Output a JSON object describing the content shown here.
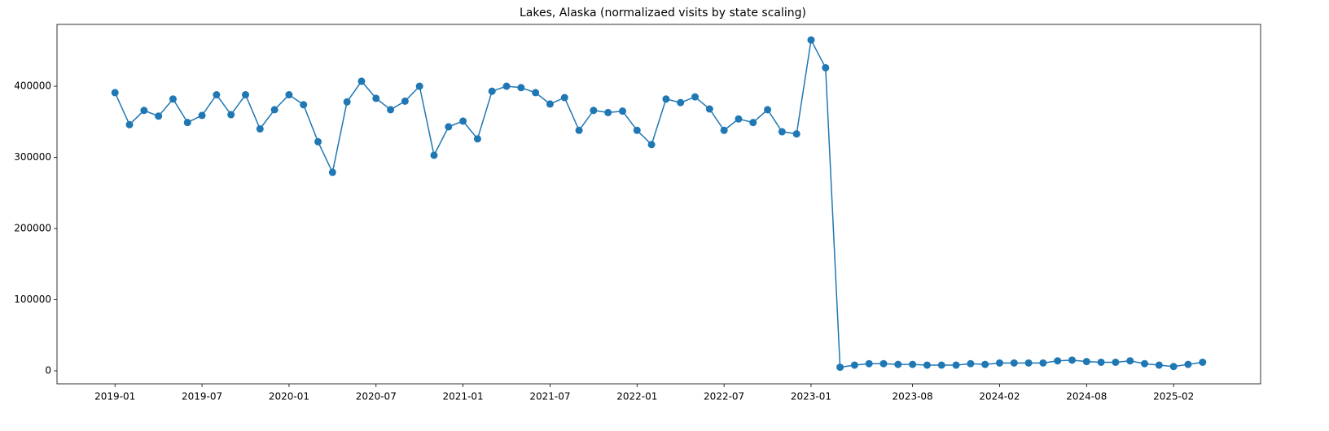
{
  "chart_data": {
    "type": "line",
    "title": "Lakes, Alaska (normalizaed visits by state scaling)",
    "x": [
      "2019-01",
      "2019-02",
      "2019-03",
      "2019-04",
      "2019-05",
      "2019-06",
      "2019-07",
      "2019-08",
      "2019-09",
      "2019-10",
      "2019-11",
      "2019-12",
      "2020-01",
      "2020-02",
      "2020-03",
      "2020-04",
      "2020-05",
      "2020-06",
      "2020-07",
      "2020-08",
      "2020-09",
      "2020-10",
      "2020-11",
      "2020-12",
      "2021-01",
      "2021-02",
      "2021-03",
      "2021-04",
      "2021-05",
      "2021-06",
      "2021-07",
      "2021-08",
      "2021-09",
      "2021-10",
      "2021-11",
      "2021-12",
      "2022-01",
      "2022-02",
      "2022-03",
      "2022-04",
      "2022-05",
      "2022-06",
      "2022-07",
      "2022-08",
      "2022-09",
      "2022-10",
      "2022-11",
      "2022-12",
      "2023-01",
      "2023-02",
      "2023-03",
      "2023-04",
      "2023-05",
      "2023-06",
      "2023-07",
      "2023-08",
      "2023-09",
      "2023-10",
      "2023-11",
      "2023-12",
      "2024-01",
      "2024-02",
      "2024-03",
      "2024-04",
      "2024-05",
      "2024-06",
      "2024-07",
      "2024-08",
      "2024-09",
      "2024-10",
      "2024-11",
      "2024-12",
      "2025-01",
      "2025-02",
      "2025-03",
      "2025-04"
    ],
    "series": [
      {
        "color": "#1f77b4",
        "values": [
          391000,
          346000,
          366000,
          358000,
          382000,
          349000,
          359000,
          388000,
          360000,
          388000,
          340000,
          367000,
          388000,
          374000,
          322000,
          279000,
          378000,
          407000,
          383000,
          367000,
          379000,
          400000,
          303000,
          343000,
          351000,
          326000,
          393000,
          400000,
          398000,
          391000,
          375000,
          384000,
          338000,
          366000,
          363000,
          365000,
          338000,
          318000,
          382000,
          377000,
          385000,
          368000,
          338000,
          354000,
          349000,
          367000,
          336000,
          333000,
          465000,
          426000,
          5000,
          8000,
          10000,
          10000,
          9000,
          9000,
          8000,
          8000,
          8000,
          10000,
          9000,
          11000,
          11000,
          11000,
          11000,
          14000,
          15000,
          13000,
          12000,
          12000,
          14000,
          10000,
          8000,
          6000,
          9000,
          12000
        ]
      }
    ],
    "xlim": [
      "2018-09",
      "2025-08"
    ],
    "xticks": [
      "2019-01",
      "2019-07",
      "2020-01",
      "2020-07",
      "2021-01",
      "2021-07",
      "2022-01",
      "2022-07",
      "2023-01",
      "2023-08",
      "2024-02",
      "2024-08",
      "2025-02"
    ],
    "ylim": [
      -18300,
      486900
    ],
    "yticks": [
      0,
      100000,
      200000,
      300000,
      400000
    ],
    "grid": false
  }
}
